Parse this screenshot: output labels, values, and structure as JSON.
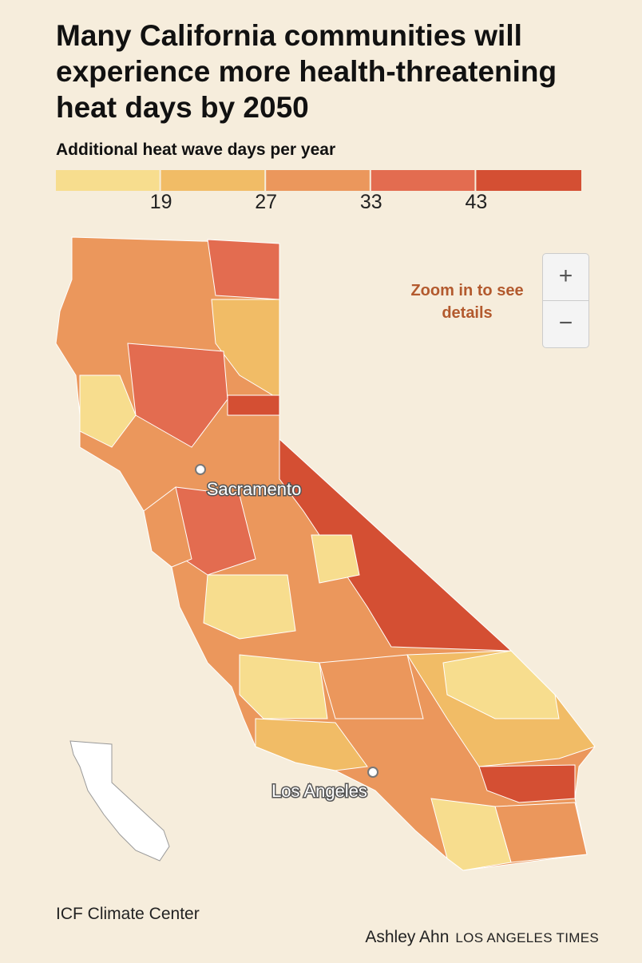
{
  "header": {
    "title": "Many California communities will experience more health-threatening heat days by 2050"
  },
  "legend": {
    "title": "Additional heat wave days per year",
    "colors": [
      "#f7dd8e",
      "#f1bc66",
      "#eb975c",
      "#e36c50",
      "#d44f33"
    ],
    "thresholds": [
      19,
      27,
      33,
      43
    ]
  },
  "map": {
    "zoom_hint": "Zoom in to see details",
    "zoom_in": "+",
    "zoom_out": "−",
    "cities": [
      {
        "name": "Sacramento"
      },
      {
        "name": "Los Angeles"
      }
    ]
  },
  "footer": {
    "source": "ICF Climate Center",
    "author": "Ashley Ahn",
    "publisher": "LOS ANGELES TIMES"
  }
}
